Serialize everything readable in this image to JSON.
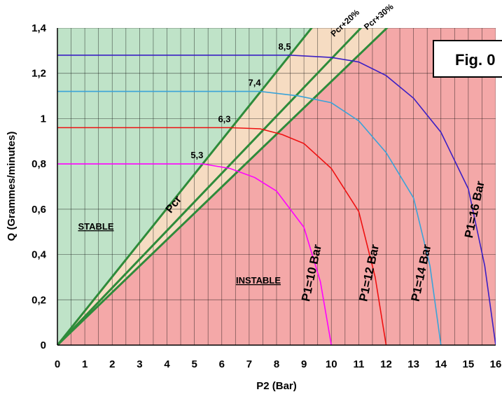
{
  "chart_data": {
    "type": "line",
    "title": "",
    "xlabel": "P2 (Bar)",
    "ylabel": "Q (Grammes/minutes)",
    "xlim": [
      0,
      16
    ],
    "ylim": [
      0,
      1.4
    ],
    "x_ticks": [
      "0",
      "1",
      "2",
      "3",
      "4",
      "5",
      "6",
      "7",
      "8",
      "9",
      "10",
      "11",
      "12",
      "13",
      "14",
      "15",
      "16"
    ],
    "y_ticks": [
      {
        "value": 0,
        "label": "0"
      },
      {
        "value": 0.2,
        "label": "0,2"
      },
      {
        "value": 0.4,
        "label": "0,4"
      },
      {
        "value": 0.6,
        "label": "0,6"
      },
      {
        "value": 0.8,
        "label": "0,8"
      },
      {
        "value": 1,
        "label": "1"
      },
      {
        "value": 1.2,
        "label": "1,2"
      },
      {
        "value": 1.4,
        "label": "1,4"
      }
    ],
    "grid": true,
    "zones": [
      {
        "label": "STABLE",
        "color": "#bfe3c8"
      },
      {
        "label": "INSTABLE",
        "color": "#f4a8a8"
      }
    ],
    "critical_lines": [
      {
        "label": "Pcr",
        "slope": 0.1509,
        "color": "#2e8b3a"
      },
      {
        "label": "Pcr+20%",
        "slope": 0.1264,
        "color": "#2e8b3a"
      },
      {
        "label": "Pcr+30%",
        "slope": 0.1164,
        "color": "#2e8b3a"
      }
    ],
    "band_color": "#f6dcc2",
    "series": [
      {
        "name": "P1=10 Bar",
        "color": "#ff00ff",
        "points": [
          [
            0,
            0.8
          ],
          [
            5.3,
            0.8
          ],
          [
            6.3,
            0.78
          ],
          [
            7.2,
            0.74
          ],
          [
            8,
            0.68
          ],
          [
            9,
            0.52
          ],
          [
            9.6,
            0.28
          ],
          [
            10,
            0
          ]
        ]
      },
      {
        "name": "P1=12 Bar",
        "color": "#ee1111",
        "points": [
          [
            0,
            0.96
          ],
          [
            6.3,
            0.96
          ],
          [
            7.4,
            0.955
          ],
          [
            8.2,
            0.93
          ],
          [
            9,
            0.89
          ],
          [
            10,
            0.78
          ],
          [
            11,
            0.59
          ],
          [
            11.6,
            0.3
          ],
          [
            12,
            0
          ]
        ]
      },
      {
        "name": "P1=14 Bar",
        "color": "#3aa3d8",
        "points": [
          [
            0,
            1.12
          ],
          [
            7.4,
            1.12
          ],
          [
            8.8,
            1.1
          ],
          [
            10,
            1.07
          ],
          [
            11,
            0.99
          ],
          [
            12,
            0.85
          ],
          [
            13,
            0.65
          ],
          [
            13.6,
            0.35
          ],
          [
            14,
            0
          ]
        ]
      },
      {
        "name": "P1=16 Bar",
        "color": "#3b1fc4",
        "points": [
          [
            0,
            1.28
          ],
          [
            8.5,
            1.28
          ],
          [
            10,
            1.27
          ],
          [
            11,
            1.25
          ],
          [
            12,
            1.19
          ],
          [
            13,
            1.09
          ],
          [
            14,
            0.94
          ],
          [
            15,
            0.69
          ],
          [
            15.6,
            0.35
          ],
          [
            16,
            0
          ]
        ]
      }
    ],
    "annotations": [
      {
        "text": "5,3",
        "x": 5.3,
        "y": 0.8
      },
      {
        "text": "6,3",
        "x": 6.3,
        "y": 0.96
      },
      {
        "text": "7,4",
        "x": 7.4,
        "y": 1.12
      },
      {
        "text": "8,5",
        "x": 8.5,
        "y": 1.28
      }
    ],
    "figure_label": "Fig. 0"
  }
}
